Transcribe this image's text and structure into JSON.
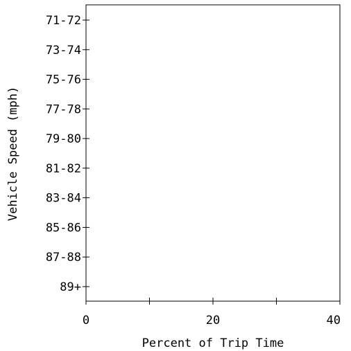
{
  "chart_data": {
    "type": "bar",
    "orientation": "horizontal",
    "title": "",
    "xlabel": "Percent of Trip Time",
    "ylabel": "Vehicle Speed (mph)",
    "categories": [
      "71-72",
      "73-74",
      "75-76",
      "77-78",
      "79-80",
      "81-82",
      "83-84",
      "85-86",
      "87-88",
      "89+"
    ],
    "values": [
      0,
      0,
      0,
      0,
      0,
      0,
      0,
      0,
      0,
      0
    ],
    "xlim": [
      0,
      40
    ],
    "x_ticks_labeled": [
      0,
      20,
      40
    ],
    "x_ticks_minor": [
      10,
      30
    ],
    "grid": false,
    "legend": "none",
    "colors": {
      "axis": "#000000",
      "background": "#ffffff",
      "bar": "#4a4a4a"
    }
  }
}
